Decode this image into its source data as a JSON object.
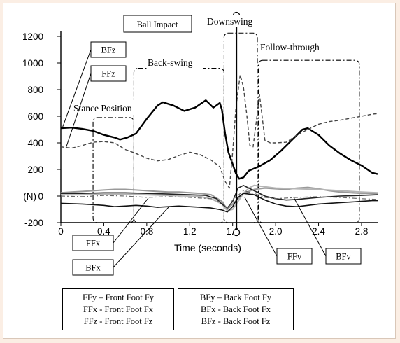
{
  "chart_data": {
    "type": "line",
    "title": "",
    "xlabel": "Time (seconds)",
    "ylabel": "(N)",
    "xlim": [
      0,
      2.95
    ],
    "ylim": [
      -200,
      1200
    ],
    "x_ticks": [
      "0",
      "0.4",
      "0.8",
      "1.2",
      "1.6",
      "2.0",
      "2.4",
      "2.8"
    ],
    "y_ticks": [
      "-200",
      "0",
      "200",
      "400",
      "600",
      "800",
      "1000",
      "1200"
    ],
    "series": [
      {
        "name": "BFz",
        "style": "solid-thick",
        "color": "#000000",
        "points": [
          [
            0,
            510
          ],
          [
            0.1,
            515
          ],
          [
            0.2,
            505
          ],
          [
            0.3,
            490
          ],
          [
            0.4,
            460
          ],
          [
            0.5,
            440
          ],
          [
            0.55,
            425
          ],
          [
            0.62,
            440
          ],
          [
            0.7,
            470
          ],
          [
            0.8,
            580
          ],
          [
            0.9,
            680
          ],
          [
            0.95,
            705
          ],
          [
            1.05,
            680
          ],
          [
            1.15,
            640
          ],
          [
            1.25,
            665
          ],
          [
            1.35,
            720
          ],
          [
            1.42,
            665
          ],
          [
            1.48,
            700
          ],
          [
            1.5,
            650
          ],
          [
            1.53,
            470
          ],
          [
            1.56,
            330
          ],
          [
            1.6,
            240
          ],
          [
            1.63,
            170
          ],
          [
            1.66,
            130
          ],
          [
            1.7,
            140
          ],
          [
            1.75,
            190
          ],
          [
            1.85,
            225
          ],
          [
            1.95,
            270
          ],
          [
            2.05,
            340
          ],
          [
            2.15,
            420
          ],
          [
            2.25,
            500
          ],
          [
            2.3,
            510
          ],
          [
            2.4,
            460
          ],
          [
            2.5,
            380
          ],
          [
            2.6,
            320
          ],
          [
            2.7,
            270
          ],
          [
            2.8,
            230
          ],
          [
            2.9,
            175
          ],
          [
            2.95,
            165
          ]
        ]
      },
      {
        "name": "FFz",
        "style": "dashed",
        "color": "#444444",
        "points": [
          [
            0,
            370
          ],
          [
            0.1,
            360
          ],
          [
            0.2,
            380
          ],
          [
            0.3,
            405
          ],
          [
            0.4,
            410
          ],
          [
            0.5,
            400
          ],
          [
            0.6,
            350
          ],
          [
            0.7,
            320
          ],
          [
            0.8,
            285
          ],
          [
            0.9,
            265
          ],
          [
            1.0,
            275
          ],
          [
            1.1,
            305
          ],
          [
            1.2,
            330
          ],
          [
            1.3,
            310
          ],
          [
            1.4,
            270
          ],
          [
            1.48,
            220
          ],
          [
            1.53,
            110
          ],
          [
            1.57,
            60
          ],
          [
            1.6,
            330
          ],
          [
            1.63,
            660
          ],
          [
            1.67,
            910
          ],
          [
            1.7,
            820
          ],
          [
            1.73,
            620
          ],
          [
            1.76,
            380
          ],
          [
            1.79,
            370
          ],
          [
            1.82,
            560
          ],
          [
            1.85,
            760
          ],
          [
            1.88,
            560
          ],
          [
            1.9,
            420
          ],
          [
            1.95,
            400
          ],
          [
            2.0,
            400
          ],
          [
            2.1,
            405
          ],
          [
            2.2,
            460
          ],
          [
            2.3,
            500
          ],
          [
            2.4,
            540
          ],
          [
            2.5,
            560
          ],
          [
            2.6,
            570
          ],
          [
            2.7,
            585
          ],
          [
            2.8,
            600
          ],
          [
            2.9,
            615
          ],
          [
            2.95,
            620
          ]
        ]
      },
      {
        "name": "FFy",
        "style": "solid-gray",
        "color": "#9a9a9a",
        "points": [
          [
            0,
            25
          ],
          [
            0.1,
            30
          ],
          [
            0.2,
            35
          ],
          [
            0.3,
            40
          ],
          [
            0.4,
            45
          ],
          [
            0.5,
            50
          ],
          [
            0.6,
            50
          ],
          [
            0.7,
            45
          ],
          [
            0.8,
            40
          ],
          [
            0.9,
            35
          ],
          [
            1.0,
            30
          ],
          [
            1.1,
            30
          ],
          [
            1.2,
            25
          ],
          [
            1.3,
            20
          ],
          [
            1.4,
            10
          ],
          [
            1.5,
            -40
          ],
          [
            1.55,
            -100
          ],
          [
            1.6,
            -60
          ],
          [
            1.7,
            20
          ],
          [
            1.8,
            50
          ],
          [
            1.9,
            60
          ],
          [
            2.0,
            55
          ],
          [
            2.1,
            50
          ],
          [
            2.2,
            60
          ],
          [
            2.3,
            65
          ],
          [
            2.4,
            55
          ],
          [
            2.5,
            40
          ],
          [
            2.6,
            30
          ],
          [
            2.7,
            25
          ],
          [
            2.8,
            20
          ],
          [
            2.9,
            20
          ],
          [
            2.95,
            20
          ]
        ]
      },
      {
        "name": "BFy",
        "style": "solid-gray",
        "color": "#b5b5b5",
        "points": [
          [
            0,
            10
          ],
          [
            0.2,
            10
          ],
          [
            0.4,
            15
          ],
          [
            0.6,
            15
          ],
          [
            0.8,
            10
          ],
          [
            1.0,
            5
          ],
          [
            1.2,
            0
          ],
          [
            1.3,
            -5
          ],
          [
            1.4,
            -20
          ],
          [
            1.5,
            -60
          ],
          [
            1.55,
            -110
          ],
          [
            1.6,
            -100
          ],
          [
            1.65,
            -40
          ],
          [
            1.7,
            20
          ],
          [
            1.75,
            60
          ],
          [
            1.8,
            80
          ],
          [
            1.9,
            70
          ],
          [
            2.0,
            60
          ],
          [
            2.2,
            55
          ],
          [
            2.4,
            50
          ],
          [
            2.6,
            40
          ],
          [
            2.8,
            30
          ],
          [
            2.95,
            25
          ]
        ]
      },
      {
        "name": "FFx",
        "style": "solid",
        "color": "#222222",
        "points": [
          [
            0,
            20
          ],
          [
            0.2,
            20
          ],
          [
            0.4,
            25
          ],
          [
            0.6,
            25
          ],
          [
            0.8,
            20
          ],
          [
            1.0,
            15
          ],
          [
            1.2,
            10
          ],
          [
            1.35,
            5
          ],
          [
            1.45,
            -20
          ],
          [
            1.5,
            -60
          ],
          [
            1.55,
            -90
          ],
          [
            1.6,
            -40
          ],
          [
            1.65,
            60
          ],
          [
            1.7,
            80
          ],
          [
            1.8,
            40
          ],
          [
            1.9,
            0
          ],
          [
            2.0,
            -20
          ],
          [
            2.1,
            -30
          ],
          [
            2.2,
            -25
          ],
          [
            2.4,
            -10
          ],
          [
            2.6,
            0
          ],
          [
            2.8,
            5
          ],
          [
            2.95,
            10
          ]
        ]
      },
      {
        "name": "BFx",
        "style": "solid",
        "color": "#111111",
        "points": [
          [
            0,
            -55
          ],
          [
            0.2,
            -60
          ],
          [
            0.4,
            -70
          ],
          [
            0.5,
            -80
          ],
          [
            0.6,
            -75
          ],
          [
            0.7,
            -70
          ],
          [
            0.8,
            -75
          ],
          [
            0.9,
            -85
          ],
          [
            1.0,
            -80
          ],
          [
            1.1,
            -75
          ],
          [
            1.2,
            -80
          ],
          [
            1.3,
            -85
          ],
          [
            1.4,
            -90
          ],
          [
            1.5,
            -105
          ],
          [
            1.55,
            -120
          ],
          [
            1.6,
            -80
          ],
          [
            1.65,
            -10
          ],
          [
            1.7,
            20
          ],
          [
            1.8,
            10
          ],
          [
            1.9,
            -30
          ],
          [
            2.0,
            -60
          ],
          [
            2.1,
            -75
          ],
          [
            2.2,
            -80
          ],
          [
            2.3,
            -70
          ],
          [
            2.4,
            -60
          ],
          [
            2.5,
            -55
          ],
          [
            2.6,
            -50
          ],
          [
            2.7,
            -45
          ],
          [
            2.8,
            -40
          ],
          [
            2.9,
            -35
          ],
          [
            2.95,
            -35
          ]
        ]
      },
      {
        "name": "",
        "style": "dashdot",
        "color": "#666666",
        "points": [
          [
            0,
            0
          ],
          [
            0.2,
            -5
          ],
          [
            0.4,
            5
          ],
          [
            0.6,
            0
          ],
          [
            0.8,
            -10
          ],
          [
            1.0,
            -5
          ],
          [
            1.2,
            -10
          ],
          [
            1.4,
            -20
          ],
          [
            1.5,
            -50
          ],
          [
            1.55,
            -90
          ],
          [
            1.6,
            -30
          ],
          [
            1.7,
            40
          ],
          [
            1.8,
            20
          ],
          [
            1.9,
            -10
          ],
          [
            2.0,
            -20
          ],
          [
            2.2,
            -10
          ],
          [
            2.4,
            -5
          ],
          [
            2.6,
            -10
          ],
          [
            2.8,
            -20
          ],
          [
            2.95,
            -25
          ]
        ]
      }
    ],
    "phases": {
      "stance": "Stance Position",
      "backswing": "Back-swing",
      "downswing": "Downswing",
      "follow": "Follow-through",
      "impact": "Ball Impact"
    },
    "callouts": [
      "BFz",
      "FFz",
      "FFx",
      "BFx",
      "FFv",
      "BFv"
    ],
    "legend_front": [
      "FFy – Front Foot Fy",
      "FFx - Front Foot Fx",
      "FFz - Front Foot Fz"
    ],
    "legend_back": [
      "BFy – Back Foot Fy",
      "BFx - Back Foot Fx",
      "BFz - Back Foot Fz"
    ],
    "grid": false
  }
}
